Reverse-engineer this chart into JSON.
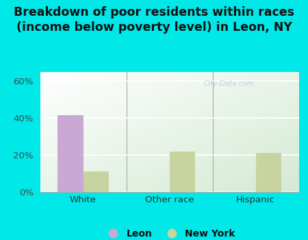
{
  "title": "Breakdown of poor residents within races\n(income below poverty level) in Leon, NY",
  "categories": [
    "White",
    "Other race",
    "Hispanic"
  ],
  "leon_values": [
    41.5,
    0,
    0
  ],
  "ny_values": [
    11.0,
    22.0,
    21.0
  ],
  "leon_color": "#c9a8d4",
  "ny_color": "#c8d4a0",
  "bar_width": 0.3,
  "ylim": [
    0,
    65
  ],
  "yticks": [
    0,
    20,
    40,
    60
  ],
  "ytick_labels": [
    "0%",
    "20%",
    "40%",
    "60%"
  ],
  "bg_color": "#00e8e8",
  "title_fontsize": 12.5,
  "tick_fontsize": 9.5,
  "legend_fontsize": 10
}
